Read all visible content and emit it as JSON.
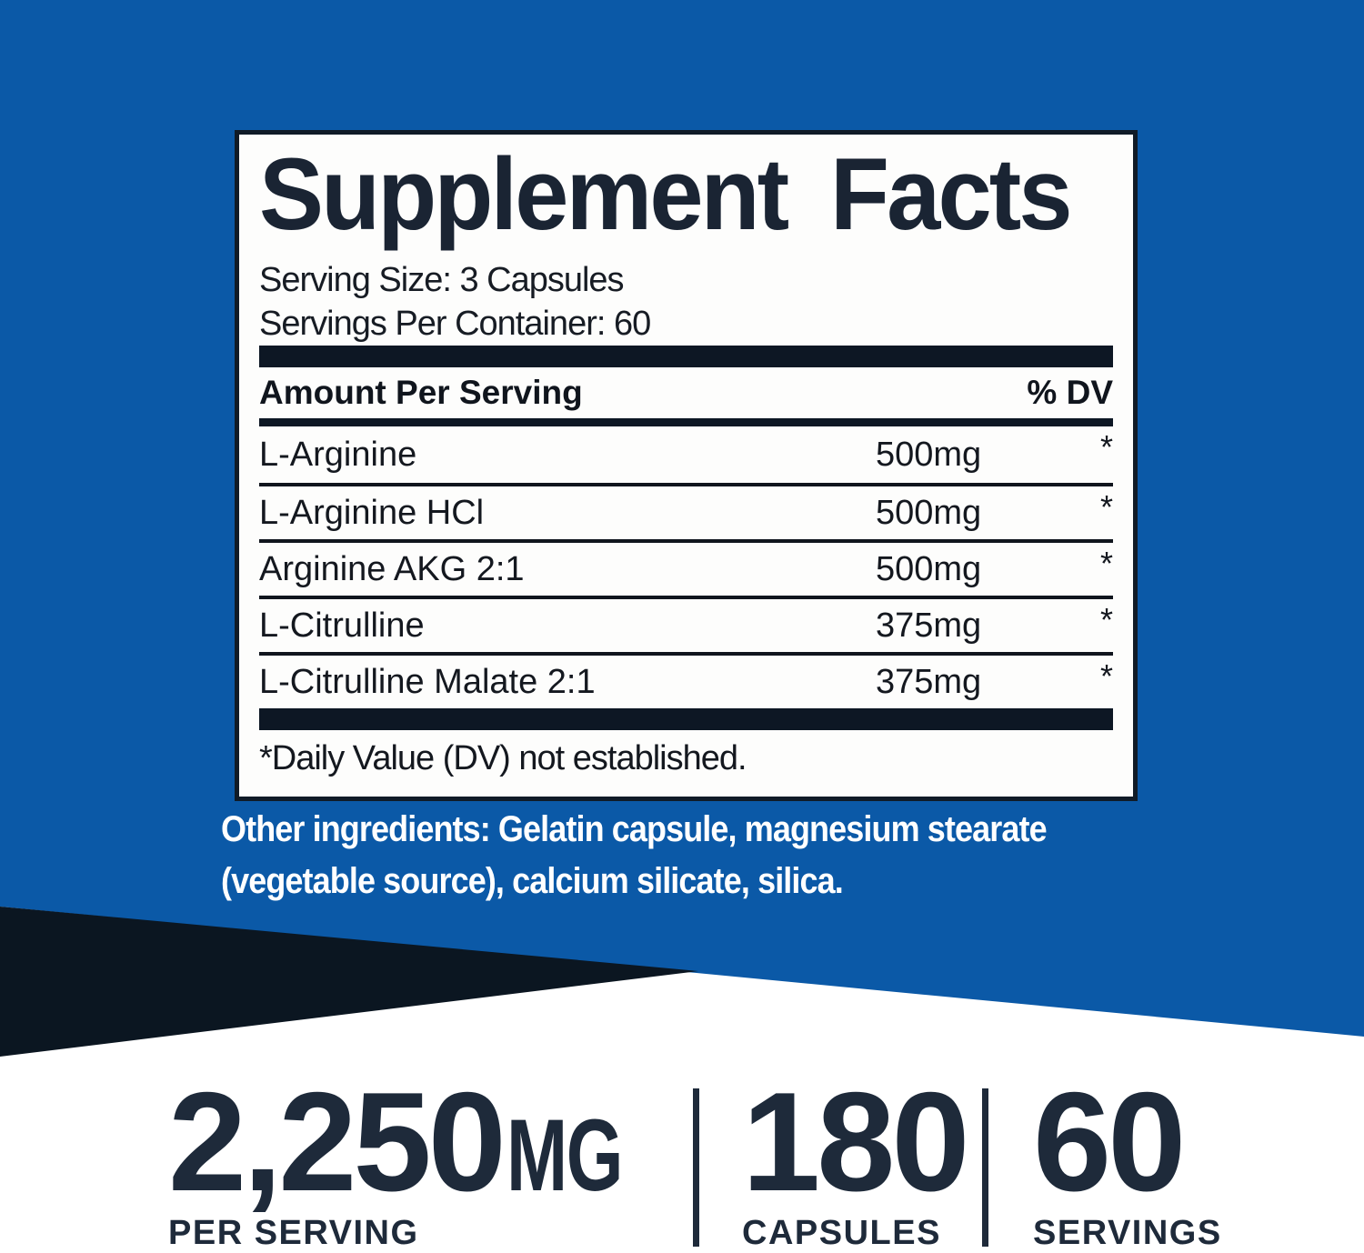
{
  "colors": {
    "background_blue": "#0b59a7",
    "accent_navy": "#0b1621",
    "panel_border": "#101b27",
    "panel_background": "#fdfdfc",
    "text_dark_navy": "#1e2a3a",
    "text_white": "#ffffff"
  },
  "panel": {
    "title": "Supplement Facts",
    "serving_size": "Serving Size: 3 Capsules",
    "servings_per_container": "Servings Per Container: 60",
    "header": {
      "amount": "Amount Per Serving",
      "dv": "% DV"
    },
    "rows": [
      {
        "name": "L-Arginine",
        "amount": "500mg",
        "dv": "*"
      },
      {
        "name": "L-Arginine HCl",
        "amount": "500mg",
        "dv": "*"
      },
      {
        "name": "Arginine AKG 2:1",
        "amount": "500mg",
        "dv": "*"
      },
      {
        "name": "L-Citrulline",
        "amount": "375mg",
        "dv": "*"
      },
      {
        "name": "L-Citrulline Malate 2:1",
        "amount": "375mg",
        "dv": "*"
      }
    ],
    "footnote": "*Daily Value (DV) not established."
  },
  "other_ingredients": {
    "line1": "Other ingredients: Gelatin capsule, magnesium stearate",
    "line2": "(vegetable source), calcium silicate, silica."
  },
  "stats": [
    {
      "value": "2,250",
      "unit": "MG",
      "label": "PER SERVING"
    },
    {
      "value": "180",
      "unit": "",
      "label": "CAPSULES"
    },
    {
      "value": "60",
      "unit": "",
      "label": "SERVINGS"
    }
  ]
}
